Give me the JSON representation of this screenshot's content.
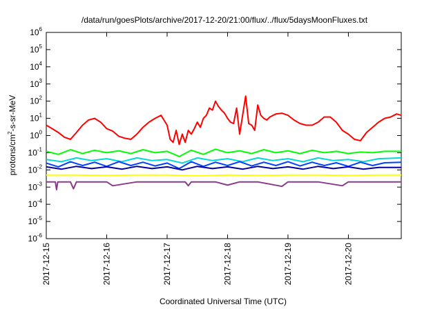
{
  "chart_data": {
    "type": "line",
    "title": "/data/run/goesPlots/archive/2017-12-20/21:00/flux/../flux/5daysMoonFluxes.txt",
    "xlabel": "Coordinated Universal Time (UTC)",
    "ylabel": {
      "base": "protons/cm",
      "sup": "2",
      "rest": "-s-sr-MeV"
    },
    "y_scale": "log",
    "ylim": [
      1e-06,
      1000000.0
    ],
    "xlim": [
      "2017-12-15",
      "2017-12-20T21:00"
    ],
    "y_ticks": [
      {
        "value": -6,
        "base": "10",
        "exp": "-6"
      },
      {
        "value": -5,
        "base": "10",
        "exp": "-5"
      },
      {
        "value": -4,
        "base": "10",
        "exp": "-4"
      },
      {
        "value": -3,
        "base": "10",
        "exp": "-3"
      },
      {
        "value": -2,
        "base": "10",
        "exp": "-2"
      },
      {
        "value": -1,
        "base": "10",
        "exp": "-1"
      },
      {
        "value": 0,
        "base": "10",
        "exp": "0"
      },
      {
        "value": 1,
        "base": "10",
        "exp": "1"
      },
      {
        "value": 2,
        "base": "10",
        "exp": "2"
      },
      {
        "value": 3,
        "base": "10",
        "exp": "3"
      },
      {
        "value": 4,
        "base": "10",
        "exp": "4"
      },
      {
        "value": 5,
        "base": "10",
        "exp": "5"
      },
      {
        "value": 6,
        "base": "10",
        "exp": "6"
      }
    ],
    "x_ticks": [
      {
        "day": 0,
        "label": "2017-12-15"
      },
      {
        "day": 1,
        "label": "2017-12-16"
      },
      {
        "day": 2,
        "label": "2017-12-17"
      },
      {
        "day": 3,
        "label": "2017-12-18"
      },
      {
        "day": 4,
        "label": "2017-12-19"
      },
      {
        "day": 5,
        "label": "2017-12-20"
      }
    ],
    "grid": false,
    "legend": "none",
    "series": [
      {
        "color": "#ff0000",
        "x": [
          0,
          0.1,
          0.2,
          0.3,
          0.4,
          0.5,
          0.6,
          0.7,
          0.8,
          0.9,
          1.0,
          1.1,
          1.2,
          1.3,
          1.4,
          1.5,
          1.6,
          1.7,
          1.8,
          1.9,
          2.0,
          2.05,
          2.1,
          2.15,
          2.2,
          2.25,
          2.3,
          2.35,
          2.4,
          2.45,
          2.5,
          2.55,
          2.6,
          2.65,
          2.7,
          2.75,
          2.8,
          2.85,
          2.9,
          2.95,
          3.0,
          3.05,
          3.1,
          3.15,
          3.2,
          3.25,
          3.3,
          3.35,
          3.4,
          3.45,
          3.5,
          3.55,
          3.6,
          3.65,
          3.7,
          3.8,
          3.9,
          4.0,
          4.1,
          4.2,
          4.3,
          4.4,
          4.5,
          4.6,
          4.7,
          4.8,
          4.9,
          5.0,
          5.1,
          5.2,
          5.3,
          5.4,
          5.5,
          5.6,
          5.7,
          5.8,
          5.875
        ],
        "y": [
          4,
          2.5,
          1.5,
          0.8,
          0.6,
          1.5,
          4,
          8,
          10,
          6,
          2.5,
          1.8,
          0.9,
          0.7,
          0.6,
          1.2,
          3,
          6,
          10,
          15,
          4,
          0.6,
          0.4,
          2,
          0.3,
          1.2,
          0.4,
          2,
          1.2,
          2.5,
          6,
          3,
          10,
          15,
          40,
          30,
          100,
          50,
          30,
          20,
          10,
          6,
          5,
          40,
          1.2,
          15,
          200,
          5,
          4,
          2,
          60,
          15,
          10,
          8,
          12,
          18,
          20,
          15,
          8,
          5,
          4,
          4,
          6,
          12,
          12,
          6,
          2,
          1.2,
          0.6,
          0.5,
          1.5,
          3,
          6,
          10,
          12,
          18,
          15
        ]
      },
      {
        "color": "#00ff00",
        "x": [
          0,
          0.2,
          0.4,
          0.6,
          0.8,
          1.0,
          1.2,
          1.4,
          1.6,
          1.8,
          2.0,
          2.2,
          2.4,
          2.6,
          2.8,
          3.0,
          3.2,
          3.4,
          3.6,
          3.8,
          4.0,
          4.2,
          4.4,
          4.6,
          4.8,
          5.0,
          5.2,
          5.4,
          5.6,
          5.875
        ],
        "y": [
          0.12,
          0.08,
          0.15,
          0.09,
          0.14,
          0.1,
          0.13,
          0.09,
          0.15,
          0.1,
          0.12,
          0.06,
          0.14,
          0.08,
          0.16,
          0.1,
          0.13,
          0.09,
          0.15,
          0.1,
          0.13,
          0.09,
          0.14,
          0.1,
          0.12,
          0.09,
          0.11,
          0.1,
          0.12,
          0.12
        ]
      },
      {
        "color": "#00d8d8",
        "x": [
          0,
          0.25,
          0.5,
          0.75,
          1.0,
          1.25,
          1.5,
          1.75,
          2.0,
          2.25,
          2.5,
          2.75,
          3.0,
          3.25,
          3.5,
          3.75,
          4.0,
          4.25,
          4.5,
          4.75,
          5.0,
          5.25,
          5.5,
          5.875
        ],
        "y": [
          0.04,
          0.03,
          0.05,
          0.035,
          0.045,
          0.03,
          0.05,
          0.035,
          0.04,
          0.025,
          0.05,
          0.035,
          0.045,
          0.03,
          0.05,
          0.035,
          0.045,
          0.03,
          0.05,
          0.035,
          0.04,
          0.03,
          0.045,
          0.05
        ]
      },
      {
        "color": "#0040ff",
        "x": [
          0,
          0.2,
          0.4,
          0.6,
          0.8,
          1.0,
          1.2,
          1.4,
          1.6,
          1.8,
          2.0,
          2.2,
          2.4,
          2.6,
          2.8,
          3.0,
          3.2,
          3.4,
          3.6,
          3.8,
          4.0,
          4.2,
          4.4,
          4.6,
          4.8,
          5.0,
          5.2,
          5.4,
          5.6,
          5.875
        ],
        "y": [
          0.025,
          0.015,
          0.03,
          0.018,
          0.028,
          0.016,
          0.03,
          0.018,
          0.028,
          0.017,
          0.025,
          0.012,
          0.03,
          0.016,
          0.028,
          0.018,
          0.03,
          0.017,
          0.028,
          0.018,
          0.03,
          0.017,
          0.028,
          0.018,
          0.026,
          0.016,
          0.028,
          0.018,
          0.026,
          0.028
        ]
      },
      {
        "color": "#0000a0",
        "x": [
          0,
          0.25,
          0.5,
          0.75,
          1.0,
          1.25,
          1.5,
          1.75,
          2.0,
          2.25,
          2.5,
          2.75,
          3.0,
          3.25,
          3.5,
          3.75,
          4.0,
          4.25,
          4.5,
          4.75,
          5.0,
          5.25,
          5.5,
          5.875
        ],
        "y": [
          0.015,
          0.011,
          0.016,
          0.012,
          0.015,
          0.011,
          0.016,
          0.012,
          0.015,
          0.01,
          0.016,
          0.012,
          0.015,
          0.011,
          0.016,
          0.012,
          0.015,
          0.011,
          0.016,
          0.012,
          0.015,
          0.011,
          0.014,
          0.014
        ]
      },
      {
        "color": "#ffff00",
        "x": [
          0,
          0.5,
          1.0,
          1.5,
          2.0,
          2.5,
          3.0,
          3.5,
          4.0,
          4.5,
          5.0,
          5.5,
          5.875
        ],
        "y": [
          0.005,
          0.005,
          0.0048,
          0.005,
          0.005,
          0.0045,
          0.005,
          0.0048,
          0.005,
          0.005,
          0.0048,
          0.005,
          0.005
        ]
      },
      {
        "color": "#8b3a8b",
        "x": [
          0,
          0.15,
          0.17,
          0.19,
          0.4,
          0.45,
          0.5,
          1.0,
          1.1,
          1.5,
          2.0,
          2.3,
          2.35,
          2.4,
          2.8,
          3.0,
          3.2,
          3.5,
          3.9,
          4.0,
          4.5,
          4.9,
          5.0,
          5.5,
          5.875
        ],
        "y": [
          0.002,
          0.002,
          0.0007,
          0.002,
          0.002,
          0.0008,
          0.002,
          0.002,
          0.0012,
          0.002,
          0.002,
          0.002,
          0.0012,
          0.002,
          0.002,
          0.0013,
          0.002,
          0.002,
          0.0011,
          0.002,
          0.002,
          0.0012,
          0.002,
          0.002,
          0.002
        ]
      }
    ]
  }
}
